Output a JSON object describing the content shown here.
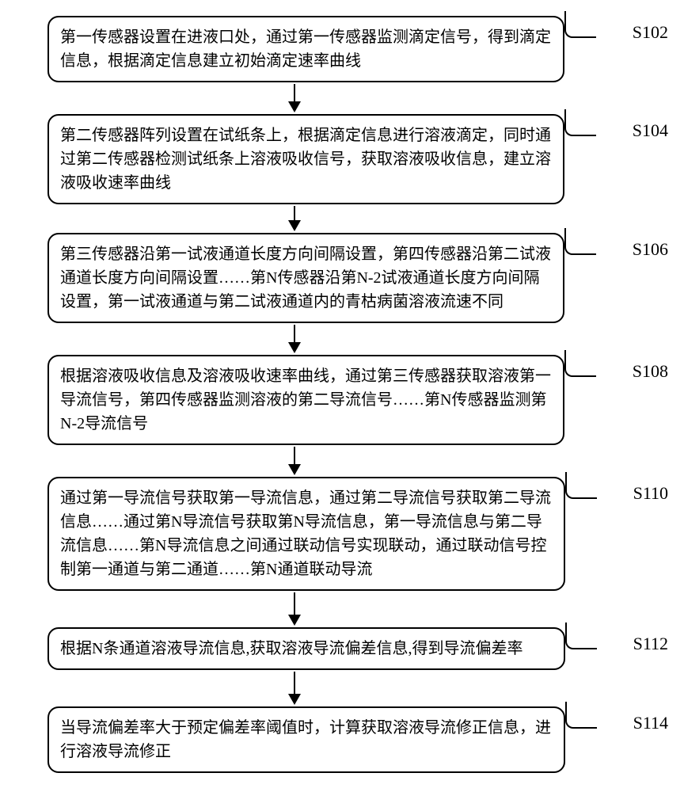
{
  "flowchart": {
    "type": "flowchart",
    "background_color": "#ffffff",
    "box_border_color": "#000000",
    "box_border_width": 2,
    "box_border_radius": 14,
    "text_color": "#000000",
    "font_size": 20,
    "label_font_size": 22,
    "arrow_color": "#000000",
    "steps": [
      {
        "id": "S102",
        "text": "第一传感器设置在进液口处，通过第一传感器监测滴定信号，得到滴定信息，根据滴定信息建立初始滴定速率曲线",
        "arrow_height": 22
      },
      {
        "id": "S104",
        "text": "第二传感器阵列设置在试纸条上，根据滴定信息进行溶液滴定，同时通过第二传感器检测试纸条上溶液吸收信号，获取溶液吸收信息，建立溶液吸收速率曲线",
        "arrow_height": 18
      },
      {
        "id": "S106",
        "text": "第三传感器沿第一试液通道长度方向间隔设置，第四传感器沿第二试液通道长度方向间隔设置……第N传感器沿第N-2试液通道长度方向间隔设置，第一试液通道与第二试液通道内的青枯病菌溶液流速不同",
        "arrow_height": 22
      },
      {
        "id": "S108",
        "text": "根据溶液吸收信息及溶液吸收速率曲线，通过第三传感器获取溶液第一导流信号，第四传感器监测溶液的第二导流信号……第N传感器监测第N-2导流信号",
        "arrow_height": 22
      },
      {
        "id": "S110",
        "text": "通过第一导流信号获取第一导流信息，通过第二导流信号获取第二导流信息……通过第N导流信号获取第N导流信息，第一导流信息与第二导流信息……第N导流信息之间通过联动信号实现联动，通过联动信号控制第一通道与第二通道……第N通道联动导流",
        "arrow_height": 28
      },
      {
        "id": "S112",
        "text": "根据N条通道溶液导流信息,获取溶液导流偏差信息,得到导流偏差率",
        "arrow_height": 28
      },
      {
        "id": "S114",
        "text": "当导流偏差率大于预定偏差率阈值时，计算获取溶液导流修正信息，进行溶液导流修正",
        "arrow_height": 0
      }
    ]
  }
}
